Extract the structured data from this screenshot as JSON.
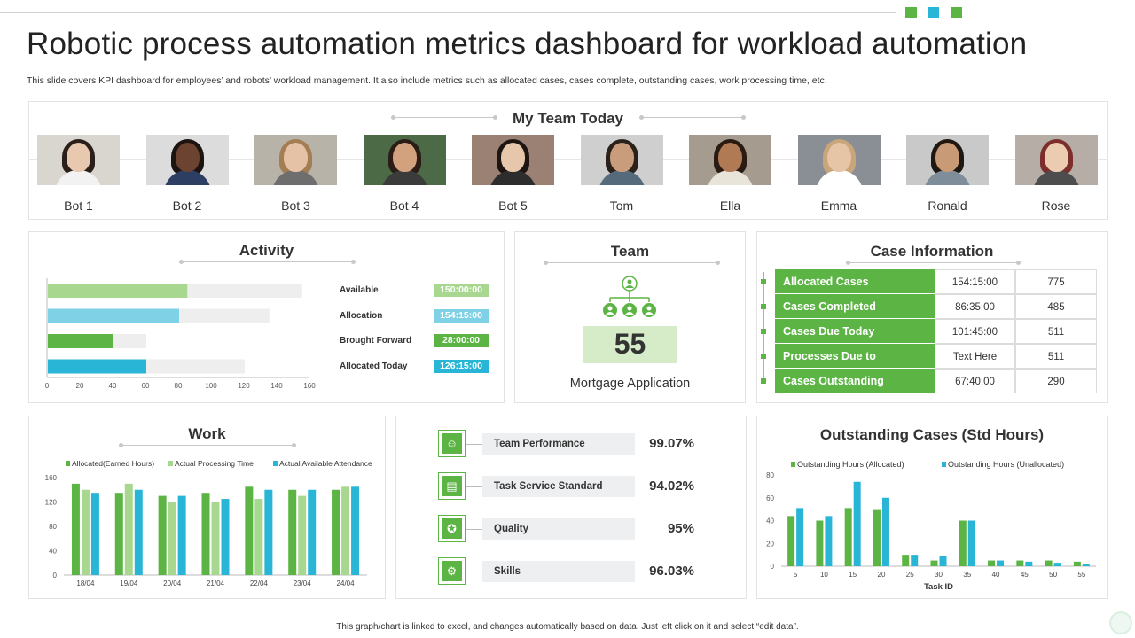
{
  "page": {
    "title": "Robotic process automation metrics dashboard for workload automation",
    "subtitle": "This slide covers KPI dashboard for employees’ and robots’ workload management. It also include metrics such as allocated cases, cases complete, outstanding cases, work processing time, etc.",
    "footer": "This graph/chart is linked to excel, and changes automatically based on data. Just left click on it and select “edit data”.",
    "accent_colors": [
      "#5bb443",
      "#29b5d6",
      "#5bb443"
    ]
  },
  "team": {
    "title": "My Team Today",
    "members": [
      {
        "name": "Bot 1",
        "icon": "person-photo",
        "bg": "#d9d5cf",
        "skin": "#e8c9b0",
        "hair": "#2a1f1a",
        "cloth": "#f2f2f2"
      },
      {
        "name": "Bot 2",
        "icon": "person-photo",
        "bg": "#dcdcdc",
        "skin": "#6b4330",
        "hair": "#1c1410",
        "cloth": "#2c3f63"
      },
      {
        "name": "Bot 3",
        "icon": "person-photo",
        "bg": "#b8b3a8",
        "skin": "#e5c2a5",
        "hair": "#a57d55",
        "cloth": "#6e6e6e"
      },
      {
        "name": "Bot 4",
        "icon": "person-photo",
        "bg": "#4c6a45",
        "skin": "#d2a27f",
        "hair": "#2b1d15",
        "cloth": "#3b3b3b"
      },
      {
        "name": "Bot 5",
        "icon": "person-photo",
        "bg": "#9a8174",
        "skin": "#e7c7ab",
        "hair": "#1d1512",
        "cloth": "#2d2d2d"
      },
      {
        "name": "Tom",
        "icon": "person-photo",
        "bg": "#cfcfcf",
        "skin": "#c99c7b",
        "hair": "#2b211b",
        "cloth": "#556b7c"
      },
      {
        "name": "Ella",
        "icon": "person-photo",
        "bg": "#a59c8f",
        "skin": "#b07a55",
        "hair": "#2a1b12",
        "cloth": "#e9e4da"
      },
      {
        "name": "Emma",
        "icon": "person-photo",
        "bg": "#8a8f96",
        "skin": "#e6c4a6",
        "hair": "#c9a57a",
        "cloth": "#ffffff"
      },
      {
        "name": "Ronald",
        "icon": "person-photo",
        "bg": "#c9c9c9",
        "skin": "#c99a76",
        "hair": "#1e1712",
        "cloth": "#7f8c99"
      },
      {
        "name": "Rose",
        "icon": "person-photo",
        "bg": "#b6aea6",
        "skin": "#ecccb1",
        "hair": "#7b2e2a",
        "cloth": "#4d4d4d"
      }
    ]
  },
  "activity": {
    "title": "Activity",
    "items": [
      {
        "label": "Available",
        "value_text": "150:00:00",
        "value": 85,
        "total": 155,
        "color": "#a8d88f"
      },
      {
        "label": "Allocation",
        "value_text": "154:15:00",
        "value": 80,
        "total": 135,
        "color": "#7fd1e6"
      },
      {
        "label": "Brought Forward",
        "value_text": "28:00:00",
        "value": 40,
        "total": 60,
        "color": "#5bb443"
      },
      {
        "label": "Allocated Today",
        "value_text": "126:15:00",
        "value": 60,
        "total": 120,
        "color": "#29b5d6"
      }
    ],
    "axis_ticks": [
      "0",
      "20",
      "40",
      "60",
      "80",
      "100",
      "120",
      "140",
      "160"
    ]
  },
  "team_card": {
    "title": "Team",
    "icon": "org-chart-icon",
    "value": "55",
    "label": "Mortgage Application"
  },
  "case_info": {
    "title": "Case Information",
    "rows": [
      {
        "label": "Allocated Cases",
        "time": "154:15:00",
        "count": "775"
      },
      {
        "label": "Cases Completed",
        "time": "86:35:00",
        "count": "485"
      },
      {
        "label": "Cases Due Today",
        "time": "101:45:00",
        "count": "511"
      },
      {
        "label": "Processes Due to",
        "time": "Text Here",
        "count": "511"
      },
      {
        "label": "Cases Outstanding",
        "time": "67:40:00",
        "count": "290"
      }
    ]
  },
  "metrics": [
    {
      "label": "Team Performance",
      "value": "99.07%",
      "icon": "team-performance-icon",
      "glyph": "☺"
    },
    {
      "label": "Task Service Standard",
      "value": "94.02%",
      "icon": "service-standard-icon",
      "glyph": "▤"
    },
    {
      "label": "Quality",
      "value": "95%",
      "icon": "quality-badge-icon",
      "glyph": "✪"
    },
    {
      "label": "Skills",
      "value": "96.03%",
      "icon": "skills-gear-icon",
      "glyph": "⚙"
    }
  ],
  "chart_data": [
    {
      "type": "bar",
      "title": "Work",
      "categories": [
        "18/04",
        "19/04",
        "20/04",
        "21/04",
        "22/04",
        "23/04",
        "24/04"
      ],
      "series": [
        {
          "name": "Allocated(Earned Hours)",
          "color": "#5bb443",
          "values": [
            150,
            135,
            130,
            135,
            145,
            140,
            140
          ]
        },
        {
          "name": "Actual Processing Time",
          "color": "#a8d88f",
          "values": [
            140,
            150,
            120,
            120,
            125,
            130,
            145
          ]
        },
        {
          "name": "Actual Available Attendance",
          "color": "#29b5d6",
          "values": [
            135,
            140,
            130,
            125,
            140,
            140,
            145
          ]
        }
      ],
      "ylim": [
        0,
        160
      ],
      "yticks": [
        "0",
        "40",
        "80",
        "120",
        "160"
      ],
      "legend": "top"
    },
    {
      "type": "bar",
      "title": "Outstanding Cases (Std Hours)",
      "xlabel": "Task ID",
      "categories": [
        "5",
        "10",
        "15",
        "20",
        "25",
        "30",
        "35",
        "40",
        "45",
        "50",
        "55"
      ],
      "series": [
        {
          "name": "Outstanding Hours (Allocated)",
          "color": "#5bb443",
          "values": [
            44,
            40,
            51,
            50,
            10,
            5,
            40,
            5,
            5,
            5,
            4
          ]
        },
        {
          "name": "Outstanding Hours (Unallocated)",
          "color": "#29b5d6",
          "values": [
            51,
            44,
            74,
            60,
            10,
            9,
            40,
            5,
            4,
            3,
            2
          ]
        }
      ],
      "ylim": [
        0,
        80
      ],
      "yticks": [
        "0",
        "20",
        "40",
        "60",
        "80"
      ],
      "legend": "top"
    }
  ]
}
